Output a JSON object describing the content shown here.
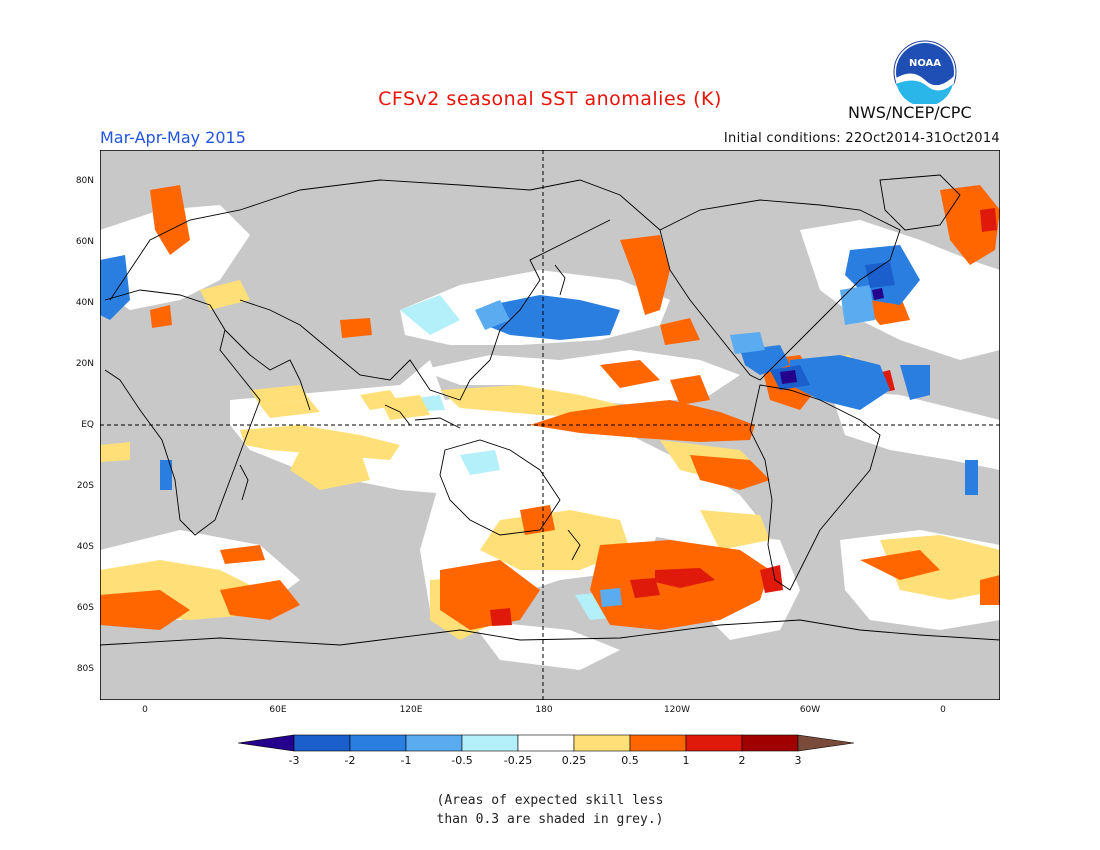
{
  "header": {
    "title": "CFSv2 seasonal SST anomalies (K)",
    "season": "Mar-Apr-May 2015",
    "initial_conditions": "Initial conditions: 22Oct2014-31Oct2014",
    "agency": "NWS/NCEP/CPC",
    "logo_text": "NOAA"
  },
  "map": {
    "y_ticks": [
      "80N",
      "60N",
      "40N",
      "20N",
      "EQ",
      "20S",
      "40S",
      "60S",
      "80S"
    ],
    "x_ticks": [
      "0",
      "60E",
      "120E",
      "180",
      "120W",
      "60W",
      "0"
    ]
  },
  "colorbar": {
    "labels": [
      "-3",
      "-2",
      "-1",
      "-0.5",
      "-0.25",
      "0.25",
      "0.5",
      "1",
      "2",
      "3"
    ],
    "colors": [
      "#24008c",
      "#1a5fcc",
      "#2a7ee0",
      "#5aabf0",
      "#b4f0fa",
      "#ffffff",
      "#ffe078",
      "#ff6600",
      "#e01a0a",
      "#a00000",
      "#7a4a3a"
    ]
  },
  "note": {
    "line1": "(Areas of expected skill less",
    "line2": "than 0.3 are shaded in grey.)"
  }
}
